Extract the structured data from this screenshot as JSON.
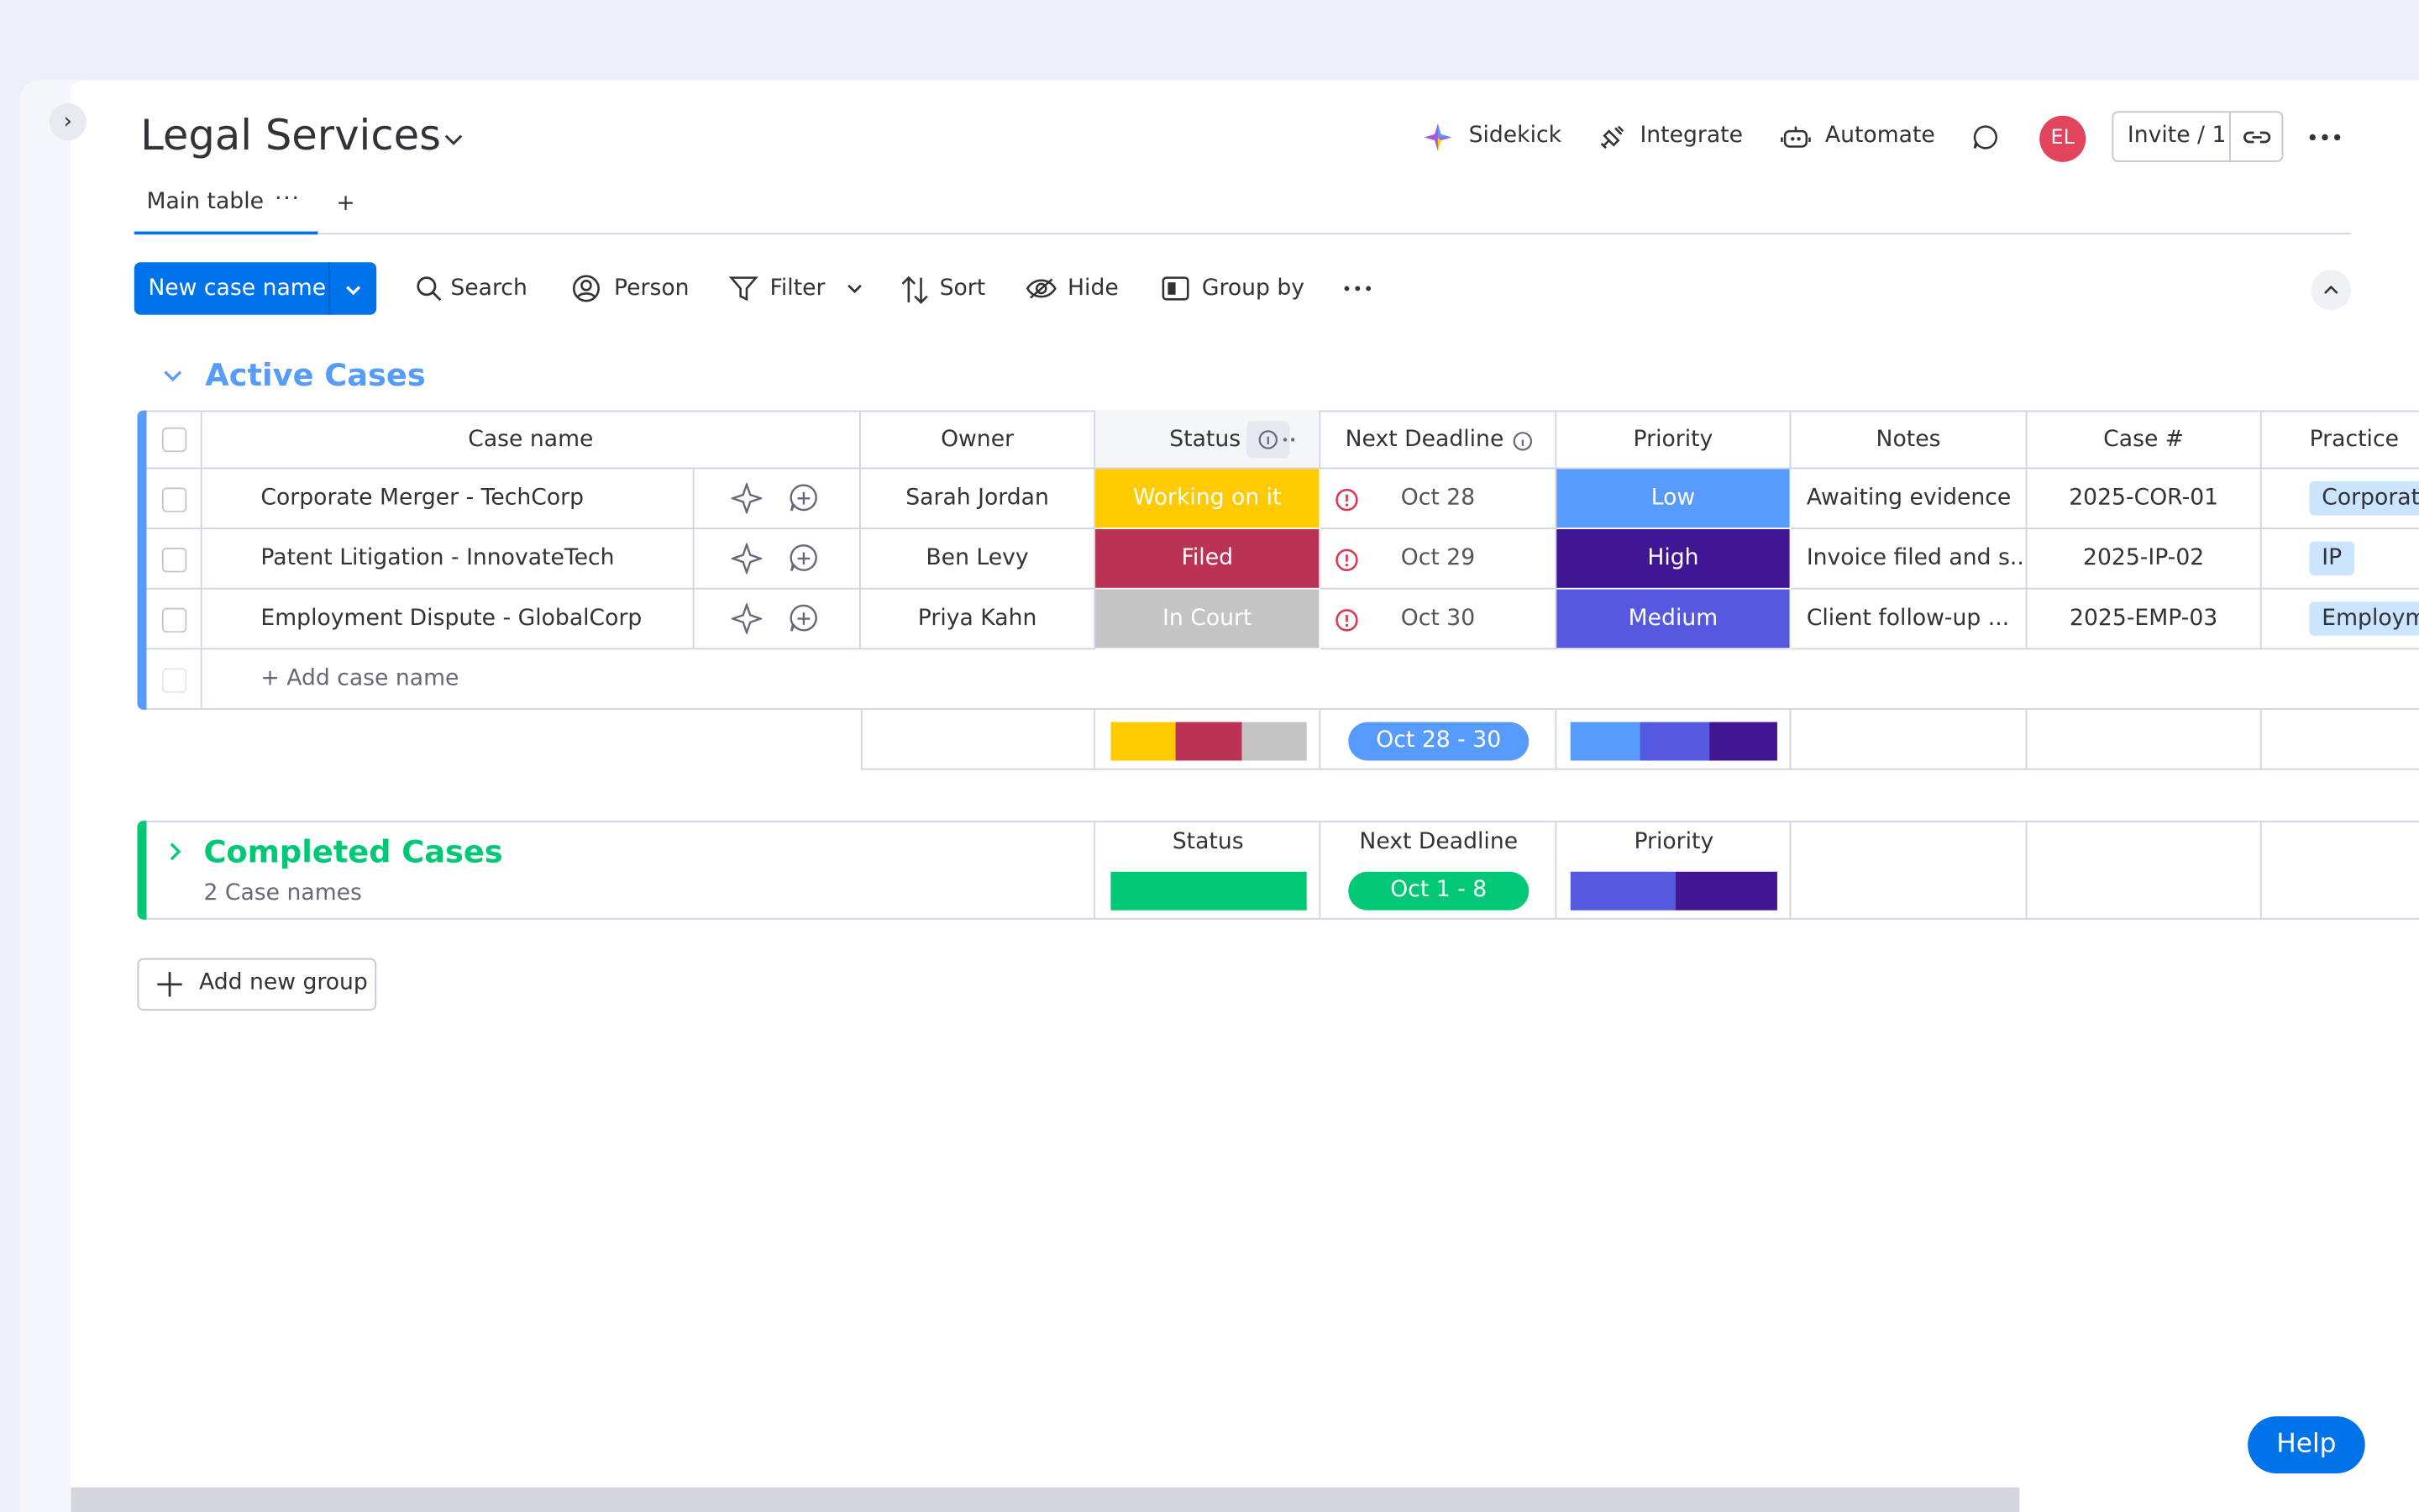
{
  "header": {
    "title": "Legal Services",
    "sidekick": "Sidekick",
    "integrate": "Integrate",
    "automate": "Automate",
    "avatar": "EL",
    "invite": "Invite / 1"
  },
  "tabs": {
    "main": "Main table",
    "add": "+"
  },
  "toolbar": {
    "new_item": "New case name",
    "search": "Search",
    "person": "Person",
    "filter": "Filter",
    "sort": "Sort",
    "hide": "Hide",
    "group_by": "Group by"
  },
  "active_group": {
    "title": "Active Cases",
    "columns": [
      "Case name",
      "Owner",
      "Status",
      "Next Deadline",
      "Priority",
      "Notes",
      "Case #",
      "Practice"
    ],
    "rows": [
      {
        "name": "Corporate Merger - TechCorp",
        "owner": "Sarah Jordan",
        "status": "Working on it",
        "deadline": "Oct 28",
        "priority": "Low",
        "notes": "Awaiting evidence",
        "case_number": "2025-COR-01",
        "practice": "Corporate"
      },
      {
        "name": "Patent Litigation - InnovateTech",
        "owner": "Ben Levy",
        "status": "Filed",
        "deadline": "Oct 29",
        "priority": "High",
        "notes": "Invoice filed and s...",
        "case_number": "2025-IP-02",
        "practice": "IP"
      },
      {
        "name": "Employment Dispute - GlobalCorp",
        "owner": "Priya Kahn",
        "status": "In Court",
        "deadline": "Oct 30",
        "priority": "Medium",
        "notes": "Client follow-up ...",
        "case_number": "2025-EMP-03",
        "practice": "Employment"
      }
    ],
    "add_item": "+ Add case name",
    "summary_deadline": "Oct 28 - 30"
  },
  "completed_group": {
    "title": "Completed Cases",
    "count": "2 Case names",
    "columns": [
      "Status",
      "Next Deadline",
      "Priority"
    ],
    "summary_deadline": "Oct 1 - 8"
  },
  "status_colors": {
    "Working on it": "#ffcb00",
    "Filed": "#bb3354",
    "In Court": "#c4c4c4"
  },
  "priority_colors": {
    "Low": "#579bfc",
    "High": "#401694",
    "Medium": "#5559df"
  },
  "add_group": "Add new group",
  "help": "Help"
}
